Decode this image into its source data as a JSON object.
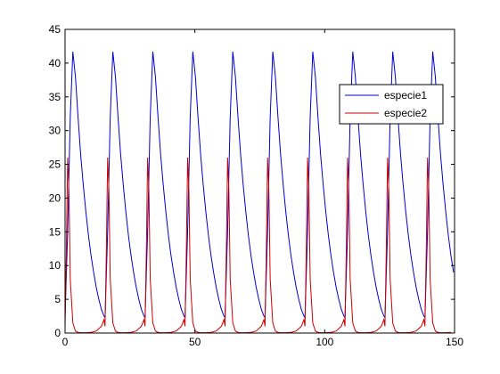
{
  "chart_data": {
    "type": "line",
    "title": "",
    "xlabel": "",
    "ylabel": "",
    "xlim": [
      0,
      150
    ],
    "ylim": [
      0,
      45
    ],
    "xticks": [
      0,
      50,
      100,
      150
    ],
    "yticks": [
      0,
      5,
      10,
      15,
      20,
      25,
      30,
      35,
      40,
      45
    ],
    "grid": false,
    "legend_position": "upper-right",
    "period": 15.4,
    "series": [
      {
        "name": "especie1",
        "color": "#0000cc",
        "x": [
          0,
          1,
          2,
          3,
          4,
          5,
          6,
          7,
          8,
          9,
          10,
          11,
          12,
          13,
          14,
          15,
          16,
          17,
          18,
          18.5,
          19,
          20,
          21,
          22,
          24,
          26,
          28,
          30,
          32,
          33,
          34,
          34.5,
          35
        ],
        "y": [
          2.3,
          15,
          32,
          41.7,
          38,
          32,
          26.5,
          22,
          18,
          14.5,
          11.5,
          9,
          6.8,
          5,
          3.5,
          2.5,
          2.1,
          8,
          32,
          41.8,
          38,
          32,
          26.5,
          22,
          14.5,
          9,
          5,
          2.5,
          2.1,
          8,
          32,
          41.8,
          38
        ]
      },
      {
        "name": "especie2",
        "color": "#cc0000",
        "x": [
          0,
          0.5,
          1,
          1.5,
          2,
          3,
          4,
          5,
          6,
          8,
          10,
          12,
          14,
          15,
          16,
          16.5,
          17,
          17.4,
          18,
          19,
          20,
          22,
          26,
          30,
          31,
          32,
          32.5,
          33,
          33.4
        ],
        "y": [
          1,
          12,
          26,
          21,
          8,
          1.5,
          0.3,
          0.1,
          0.05,
          0.05,
          0.1,
          0.3,
          1,
          2,
          5,
          12,
          20,
          26.5,
          18,
          3,
          0.5,
          0.05,
          0.1,
          1,
          2,
          5,
          12,
          20,
          26.5
        ]
      }
    ]
  }
}
